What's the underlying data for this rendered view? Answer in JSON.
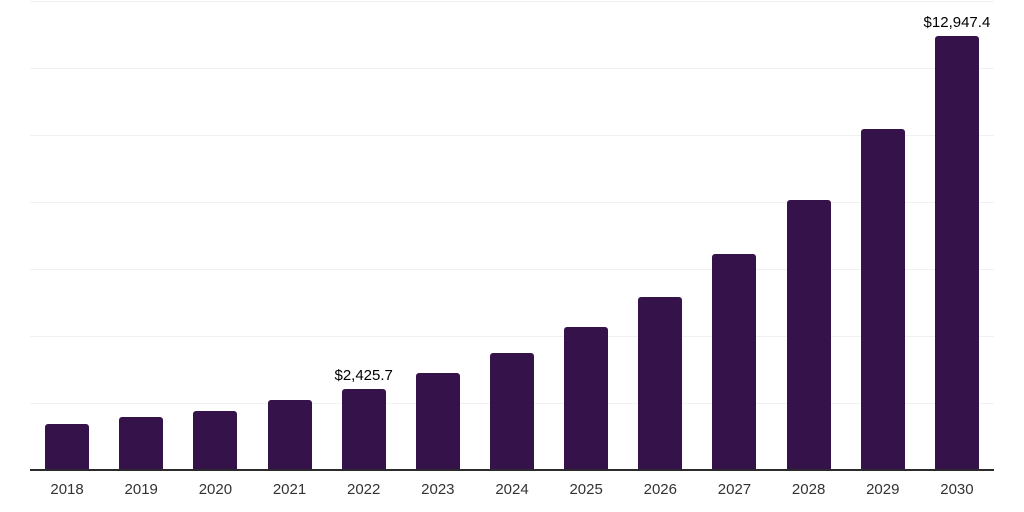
{
  "chart_data": {
    "type": "bar",
    "title": "",
    "xlabel": "",
    "ylabel": "",
    "categories": [
      "2018",
      "2019",
      "2020",
      "2021",
      "2022",
      "2023",
      "2024",
      "2025",
      "2026",
      "2027",
      "2028",
      "2029",
      "2030"
    ],
    "values": [
      1360,
      1580,
      1770,
      2080,
      2425.7,
      2900,
      3500,
      4260,
      5170,
      6440,
      8050,
      10190,
      12947.4
    ],
    "data_labels": [
      {
        "category": "2022",
        "text": "$2,425.7"
      },
      {
        "category": "2030",
        "text": "$12,947.4"
      }
    ],
    "ylim": [
      0,
      14000
    ],
    "gridline_interval": 2000,
    "grid": true,
    "legend": "none",
    "y_axis_tick_labels_visible": false
  },
  "style": {
    "bar_color": "#36124B",
    "axis_line_color": "#2b2b2b",
    "gridline_color": "#f0f0f0",
    "tick_label_color": "#333333",
    "data_label_color": "#000000",
    "background": "#ffffff"
  }
}
